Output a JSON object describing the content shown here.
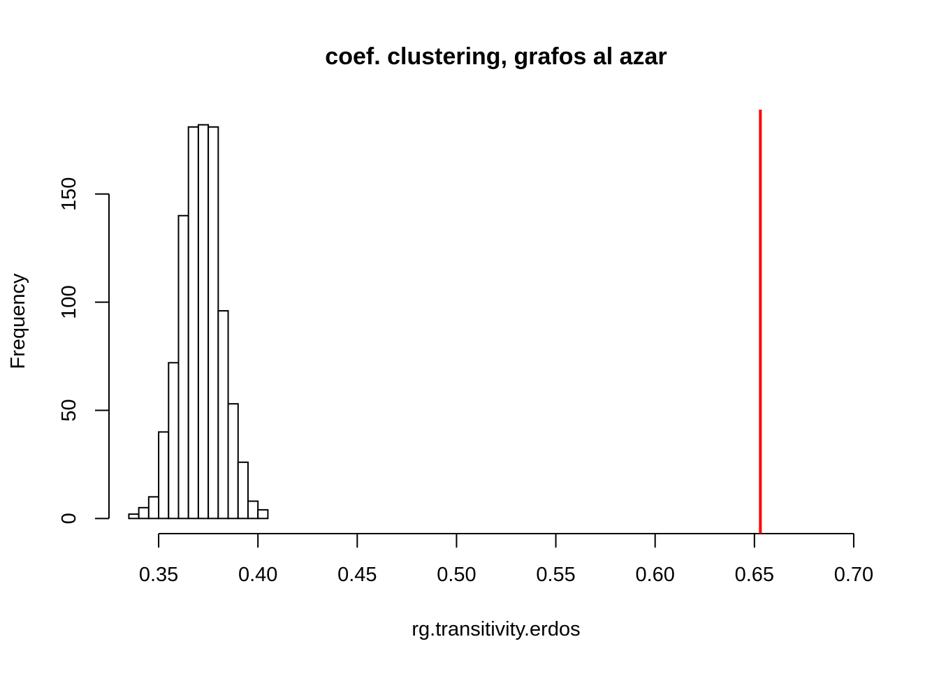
{
  "chart_data": {
    "type": "histogram",
    "title": "coef. clustering, grafos al azar",
    "x_label": "rg.transitivity.erdos",
    "y_label": "Frequency",
    "bins": [
      0.335,
      0.34,
      0.345,
      0.35,
      0.355,
      0.36,
      0.365,
      0.37,
      0.375,
      0.38,
      0.385,
      0.39,
      0.395,
      0.4,
      0.405
    ],
    "values": [
      2,
      5,
      10,
      40,
      72,
      140,
      181,
      182,
      181,
      96,
      53,
      26,
      8,
      4
    ],
    "color": "#ffffff",
    "vline": {
      "value": 0.653,
      "color": "#ff0000"
    },
    "xlim": [
      0.325,
      0.725
    ],
    "ylim": [
      -7,
      189
    ],
    "xticks": [
      {
        "value": 0.35,
        "label": "0.35"
      },
      {
        "value": 0.4,
        "label": "0.40"
      },
      {
        "value": 0.45,
        "label": "0.45"
      },
      {
        "value": 0.5,
        "label": "0.50"
      },
      {
        "value": 0.55,
        "label": "0.55"
      },
      {
        "value": 0.6,
        "label": "0.60"
      },
      {
        "value": 0.65,
        "label": "0.65"
      },
      {
        "value": 0.7,
        "label": "0.70"
      }
    ],
    "yticks": [
      0,
      50,
      100,
      150
    ]
  }
}
